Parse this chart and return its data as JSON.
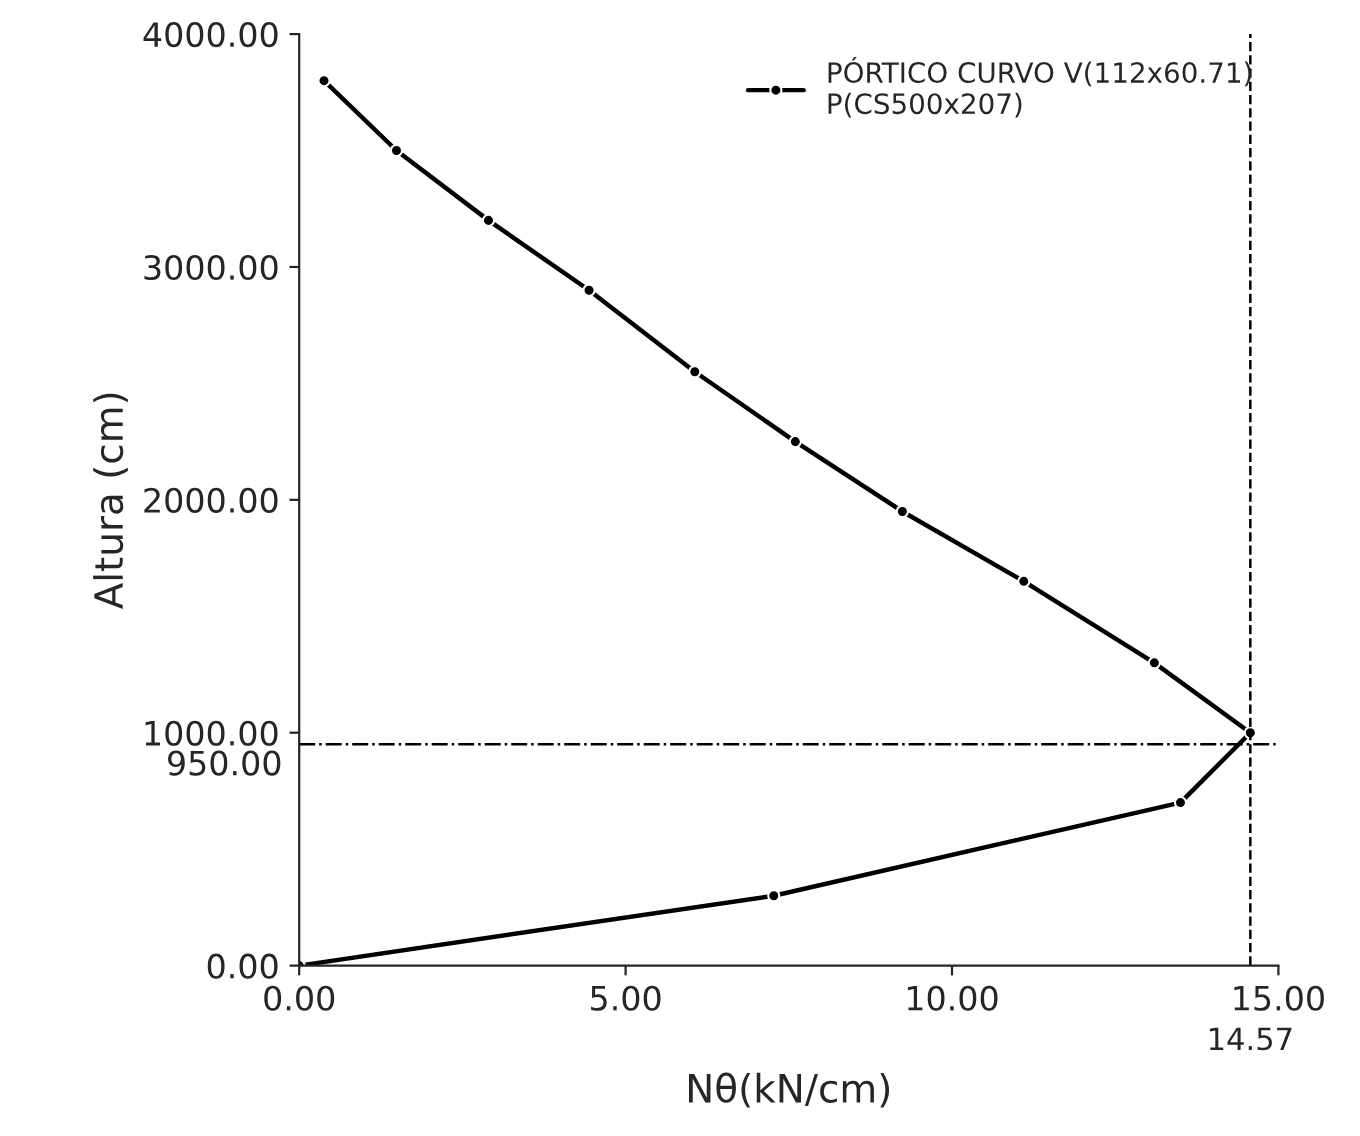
{
  "chart_data": {
    "type": "line",
    "xlabel": "Nθ(kN/cm)",
    "ylabel": "Altura (cm)",
    "xlim": [
      0,
      15
    ],
    "ylim": [
      0,
      4000
    ],
    "xticks": [
      {
        "value": 0,
        "label": "0.00"
      },
      {
        "value": 5,
        "label": "5.00"
      },
      {
        "value": 10,
        "label": "10.00"
      },
      {
        "value": 15,
        "label": "15.00"
      }
    ],
    "yticks": [
      {
        "value": 0,
        "label": "0.00"
      },
      {
        "value": 1000,
        "label": "1000.00"
      },
      {
        "value": 2000,
        "label": "2000.00"
      },
      {
        "value": 3000,
        "label": "3000.00"
      },
      {
        "value": 4000,
        "label": "4000.00"
      }
    ],
    "x": [
      0.38,
      1.49,
      2.9,
      4.44,
      6.06,
      7.6,
      9.24,
      11.1,
      13.1,
      14.57,
      13.5,
      7.27,
      0
    ],
    "series": [
      {
        "name": "PÓRTICO CURVO V(112x60.71)\nP(CS500x207)",
        "color": "#000000",
        "values": [
          3800,
          3500,
          3200,
          2900,
          2550,
          2250,
          1950,
          1650,
          1300,
          1000,
          700,
          300,
          0
        ]
      }
    ],
    "marker": "circle",
    "line_style": "solid",
    "legend": "top right",
    "grid": false,
    "ref_lines": [
      {
        "axis": "y",
        "value": 950,
        "label": "950.00",
        "line_style": "dashdot",
        "color": "#000000"
      },
      {
        "axis": "x",
        "value": 14.57,
        "label": "14.57",
        "line_style": "dashed",
        "color": "#000000"
      }
    ]
  }
}
